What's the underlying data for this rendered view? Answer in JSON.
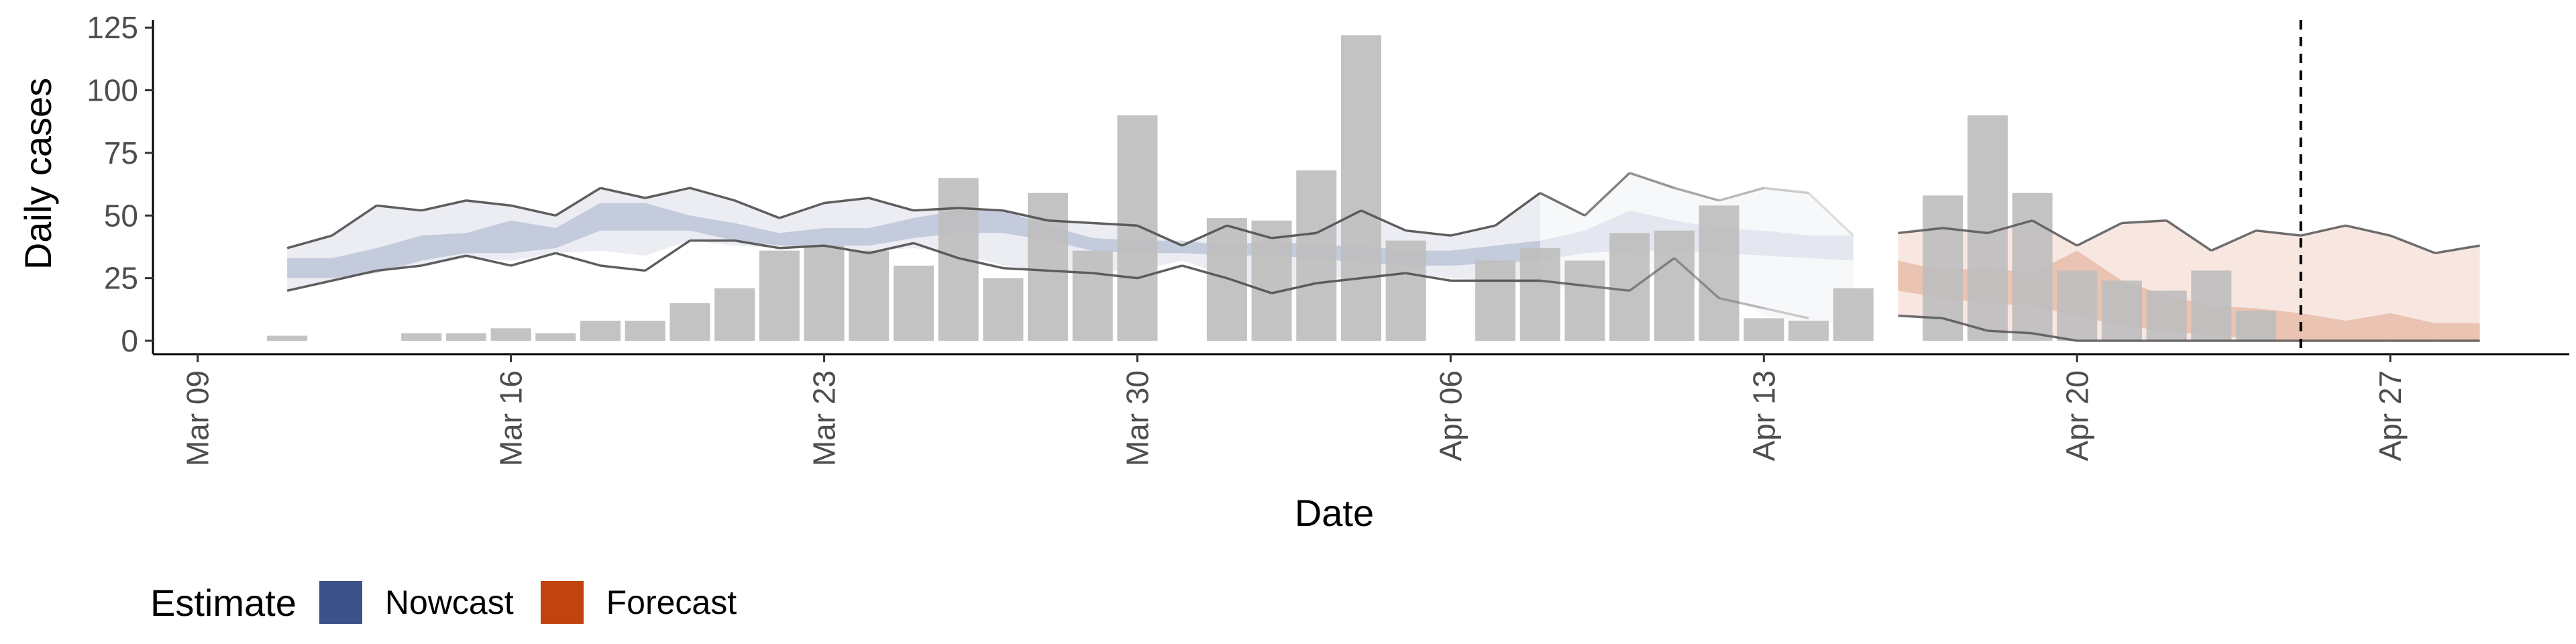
{
  "chart_data": {
    "type": "bar",
    "title": "",
    "xlabel": "Date",
    "ylabel": "Daily cases",
    "ylim": [
      0,
      128
    ],
    "y_ticks": [
      0,
      25,
      50,
      75,
      100,
      125
    ],
    "x_range": [
      "2020-03-08",
      "2020-05-01"
    ],
    "x_ticks": [
      {
        "date": "2020-03-09",
        "label": "Mar 09"
      },
      {
        "date": "2020-03-16",
        "label": "Mar 16"
      },
      {
        "date": "2020-03-23",
        "label": "Mar 23"
      },
      {
        "date": "2020-03-30",
        "label": "Mar 30"
      },
      {
        "date": "2020-04-06",
        "label": "Apr 06"
      },
      {
        "date": "2020-04-13",
        "label": "Apr 13"
      },
      {
        "date": "2020-04-20",
        "label": "Apr 20"
      },
      {
        "date": "2020-04-27",
        "label": "Apr 27"
      }
    ],
    "reference_line_date": "2020-04-25",
    "grid": false,
    "colors": {
      "bars": "#bebebe",
      "nowcast": "#3b528b",
      "forecast": "#c1440e",
      "range_line": "#555555",
      "reference_line": "#000000"
    },
    "bars": {
      "dates": [
        "2020-03-11",
        "2020-03-14",
        "2020-03-15",
        "2020-03-16",
        "2020-03-17",
        "2020-03-18",
        "2020-03-19",
        "2020-03-20",
        "2020-03-21",
        "2020-03-22",
        "2020-03-23",
        "2020-03-24",
        "2020-03-25",
        "2020-03-26",
        "2020-03-27",
        "2020-03-28",
        "2020-03-29",
        "2020-03-30",
        "2020-04-01",
        "2020-04-02",
        "2020-04-03",
        "2020-04-04",
        "2020-04-05",
        "2020-04-07",
        "2020-04-08",
        "2020-04-09",
        "2020-04-10",
        "2020-04-11",
        "2020-04-12",
        "2020-04-13",
        "2020-04-14",
        "2020-04-15",
        "2020-04-17",
        "2020-04-18",
        "2020-04-19",
        "2020-04-20",
        "2020-04-21",
        "2020-04-22",
        "2020-04-23",
        "2020-04-24",
        "2020-04-25"
      ],
      "values": [
        2,
        3,
        3,
        5,
        3,
        8,
        8,
        15,
        21,
        36,
        38,
        36,
        30,
        65,
        25,
        59,
        36,
        90,
        49,
        48,
        68,
        122,
        40,
        32,
        37,
        32,
        43,
        44,
        54,
        9,
        8,
        21,
        58,
        90,
        59,
        28,
        24,
        20,
        28,
        12,
        0
      ]
    },
    "series": [
      {
        "name": "Nowcast",
        "dates": [
          "2020-03-11",
          "2020-03-12",
          "2020-03-13",
          "2020-03-14",
          "2020-03-15",
          "2020-03-16",
          "2020-03-17",
          "2020-03-18",
          "2020-03-19",
          "2020-03-20",
          "2020-03-21",
          "2020-03-22",
          "2020-03-23",
          "2020-03-24",
          "2020-03-25",
          "2020-03-26",
          "2020-03-27",
          "2020-03-28",
          "2020-03-29",
          "2020-03-30",
          "2020-03-31",
          "2020-04-01",
          "2020-04-02",
          "2020-04-03",
          "2020-04-04",
          "2020-04-05",
          "2020-04-06",
          "2020-04-07",
          "2020-04-08",
          "2020-04-09",
          "2020-04-10",
          "2020-04-11",
          "2020-04-12",
          "2020-04-13",
          "2020-04-14",
          "2020-04-15"
        ],
        "inner_lower": [
          25,
          25,
          27,
          32,
          35,
          35,
          37,
          44,
          44,
          44,
          40,
          38,
          38,
          38,
          41,
          43,
          43,
          40,
          36,
          35,
          35,
          34,
          34,
          33,
          31,
          30,
          30,
          31,
          32,
          35,
          36,
          36,
          35,
          34,
          33,
          32
        ],
        "inner_upper": [
          33,
          33,
          37,
          42,
          43,
          48,
          45,
          55,
          55,
          50,
          47,
          43,
          45,
          45,
          49,
          52,
          52,
          46,
          41,
          40,
          40,
          38,
          40,
          38,
          38,
          36,
          36,
          38,
          40,
          44,
          52,
          48,
          45,
          44,
          42,
          42
        ],
        "outer_lower": [
          20,
          24,
          28,
          30,
          33,
          32,
          35,
          36,
          34,
          40,
          38,
          37,
          37,
          36,
          37,
          35,
          30,
          28,
          28,
          28,
          32,
          26,
          20,
          24,
          26,
          27,
          25,
          24,
          22,
          20,
          28,
          26,
          20,
          10,
          7,
          7
        ],
        "outer_upper": [
          37,
          42,
          54,
          52,
          56,
          54,
          50,
          61,
          57,
          61,
          56,
          49,
          55,
          57,
          52,
          53,
          52,
          49,
          47,
          46,
          38,
          46,
          41,
          43,
          52,
          44,
          42,
          46,
          59,
          50,
          67,
          61,
          56,
          61,
          59,
          42
        ],
        "line_lower": [
          20,
          24,
          28,
          30,
          34,
          30,
          35,
          30,
          28,
          40,
          40,
          37,
          38,
          35,
          39,
          33,
          29,
          28,
          27,
          25,
          30,
          25,
          19,
          23,
          25,
          27,
          24,
          24,
          24,
          22,
          20,
          33,
          17,
          13,
          9,
          null
        ],
        "line_upper": [
          37,
          42,
          54,
          52,
          56,
          54,
          50,
          61,
          57,
          61,
          56,
          49,
          55,
          57,
          52,
          53,
          52,
          48,
          47,
          46,
          38,
          46,
          41,
          43,
          52,
          44,
          42,
          46,
          59,
          50,
          67,
          61,
          56,
          61,
          59,
          42
        ],
        "faded_from_date": "2020-04-08"
      },
      {
        "name": "Forecast",
        "dates": [
          "2020-04-16",
          "2020-04-17",
          "2020-04-18",
          "2020-04-19",
          "2020-04-20",
          "2020-04-21",
          "2020-04-22",
          "2020-04-23",
          "2020-04-24",
          "2020-04-25",
          "2020-04-26",
          "2020-04-27",
          "2020-04-28",
          "2020-04-29"
        ],
        "inner_lower": [
          20,
          17,
          15,
          14,
          10,
          6,
          4,
          2,
          1,
          0,
          0,
          0,
          0,
          0
        ],
        "inner_upper": [
          32,
          28,
          29,
          27,
          36,
          24,
          18,
          14,
          13,
          11,
          8,
          11,
          7,
          7
        ],
        "outer_lower": [
          10,
          9,
          4,
          3,
          0,
          0,
          0,
          0,
          0,
          0,
          0,
          0,
          0,
          0
        ],
        "outer_upper": [
          43,
          45,
          43,
          48,
          38,
          47,
          48,
          36,
          44,
          42,
          46,
          42,
          35,
          38
        ],
        "line_lower": [
          10,
          9,
          4,
          3,
          0,
          0,
          0,
          0,
          0,
          0,
          0,
          0,
          0,
          0
        ],
        "line_upper": [
          43,
          45,
          43,
          48,
          38,
          47,
          48,
          36,
          44,
          42,
          46,
          42,
          35,
          38
        ]
      }
    ],
    "legend": {
      "title": "Estimate",
      "position": "bottom-left",
      "entries": [
        {
          "label": "Nowcast",
          "color": "#3b528b"
        },
        {
          "label": "Forecast",
          "color": "#c1440e"
        }
      ]
    }
  }
}
